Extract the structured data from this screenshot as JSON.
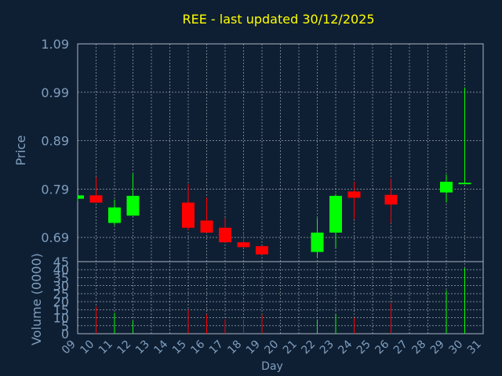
{
  "chart_data": {
    "type": "candlestick",
    "title": "REE - last updated 30/12/2025",
    "xlabel": "Day",
    "ylabel": "Price",
    "volume_label": "Volume (0000)",
    "colors": {
      "background": "#0f1f33",
      "grid": "#ffffff",
      "title": "#ffff00",
      "axis_text": "#7f9fbf",
      "up": "#00ff00",
      "down": "#ff0000"
    },
    "x_ticks": [
      "09",
      "10",
      "11",
      "12",
      "13",
      "14",
      "15",
      "16",
      "17",
      "18",
      "19",
      "20",
      "21",
      "22",
      "23",
      "24",
      "25",
      "26",
      "27",
      "28",
      "29",
      "30",
      "31"
    ],
    "price_ticks": [
      "1.09",
      "0.99",
      "0.89",
      "0.79",
      "0.69"
    ],
    "volume_ticks": [
      "0",
      "5",
      "10",
      "15",
      "20",
      "25",
      "30",
      "35",
      "40",
      "45"
    ],
    "xlim": [
      9,
      31
    ],
    "ylim": [
      0.64,
      1.09
    ],
    "vol_lim": [
      0,
      45
    ],
    "candles": [
      {
        "day": 9,
        "open": 0.77,
        "high": 0.777,
        "low": 0.765,
        "close": 0.777,
        "volume": 0
      },
      {
        "day": 10,
        "open": 0.777,
        "high": 0.815,
        "low": 0.762,
        "close": 0.762,
        "volume": 17
      },
      {
        "day": 11,
        "open": 0.72,
        "high": 0.768,
        "low": 0.715,
        "close": 0.752,
        "volume": 13
      },
      {
        "day": 12,
        "open": 0.735,
        "high": 0.822,
        "low": 0.735,
        "close": 0.776,
        "volume": 8
      },
      {
        "day": 15,
        "open": 0.762,
        "high": 0.8,
        "low": 0.705,
        "close": 0.71,
        "volume": 15
      },
      {
        "day": 16,
        "open": 0.725,
        "high": 0.772,
        "low": 0.7,
        "close": 0.7,
        "volume": 12
      },
      {
        "day": 17,
        "open": 0.71,
        "high": 0.73,
        "low": 0.68,
        "close": 0.68,
        "volume": 9
      },
      {
        "day": 18,
        "open": 0.68,
        "high": 0.7,
        "low": 0.67,
        "close": 0.67,
        "volume": 9
      },
      {
        "day": 19,
        "open": 0.672,
        "high": 0.672,
        "low": 0.655,
        "close": 0.655,
        "volume": 12
      },
      {
        "day": 22,
        "open": 0.66,
        "high": 0.73,
        "low": 0.648,
        "close": 0.7,
        "volume": 9
      },
      {
        "day": 23,
        "open": 0.7,
        "high": 0.78,
        "low": 0.668,
        "close": 0.776,
        "volume": 12
      },
      {
        "day": 24,
        "open": 0.785,
        "high": 0.805,
        "low": 0.728,
        "close": 0.772,
        "volume": 10
      },
      {
        "day": 26,
        "open": 0.778,
        "high": 0.812,
        "low": 0.72,
        "close": 0.758,
        "volume": 19
      },
      {
        "day": 29,
        "open": 0.783,
        "high": 0.82,
        "low": 0.762,
        "close": 0.805,
        "volume": 27
      },
      {
        "day": 30,
        "open": 0.8,
        "high": 1.0,
        "low": 0.8,
        "close": 0.803,
        "volume": 41
      }
    ]
  }
}
